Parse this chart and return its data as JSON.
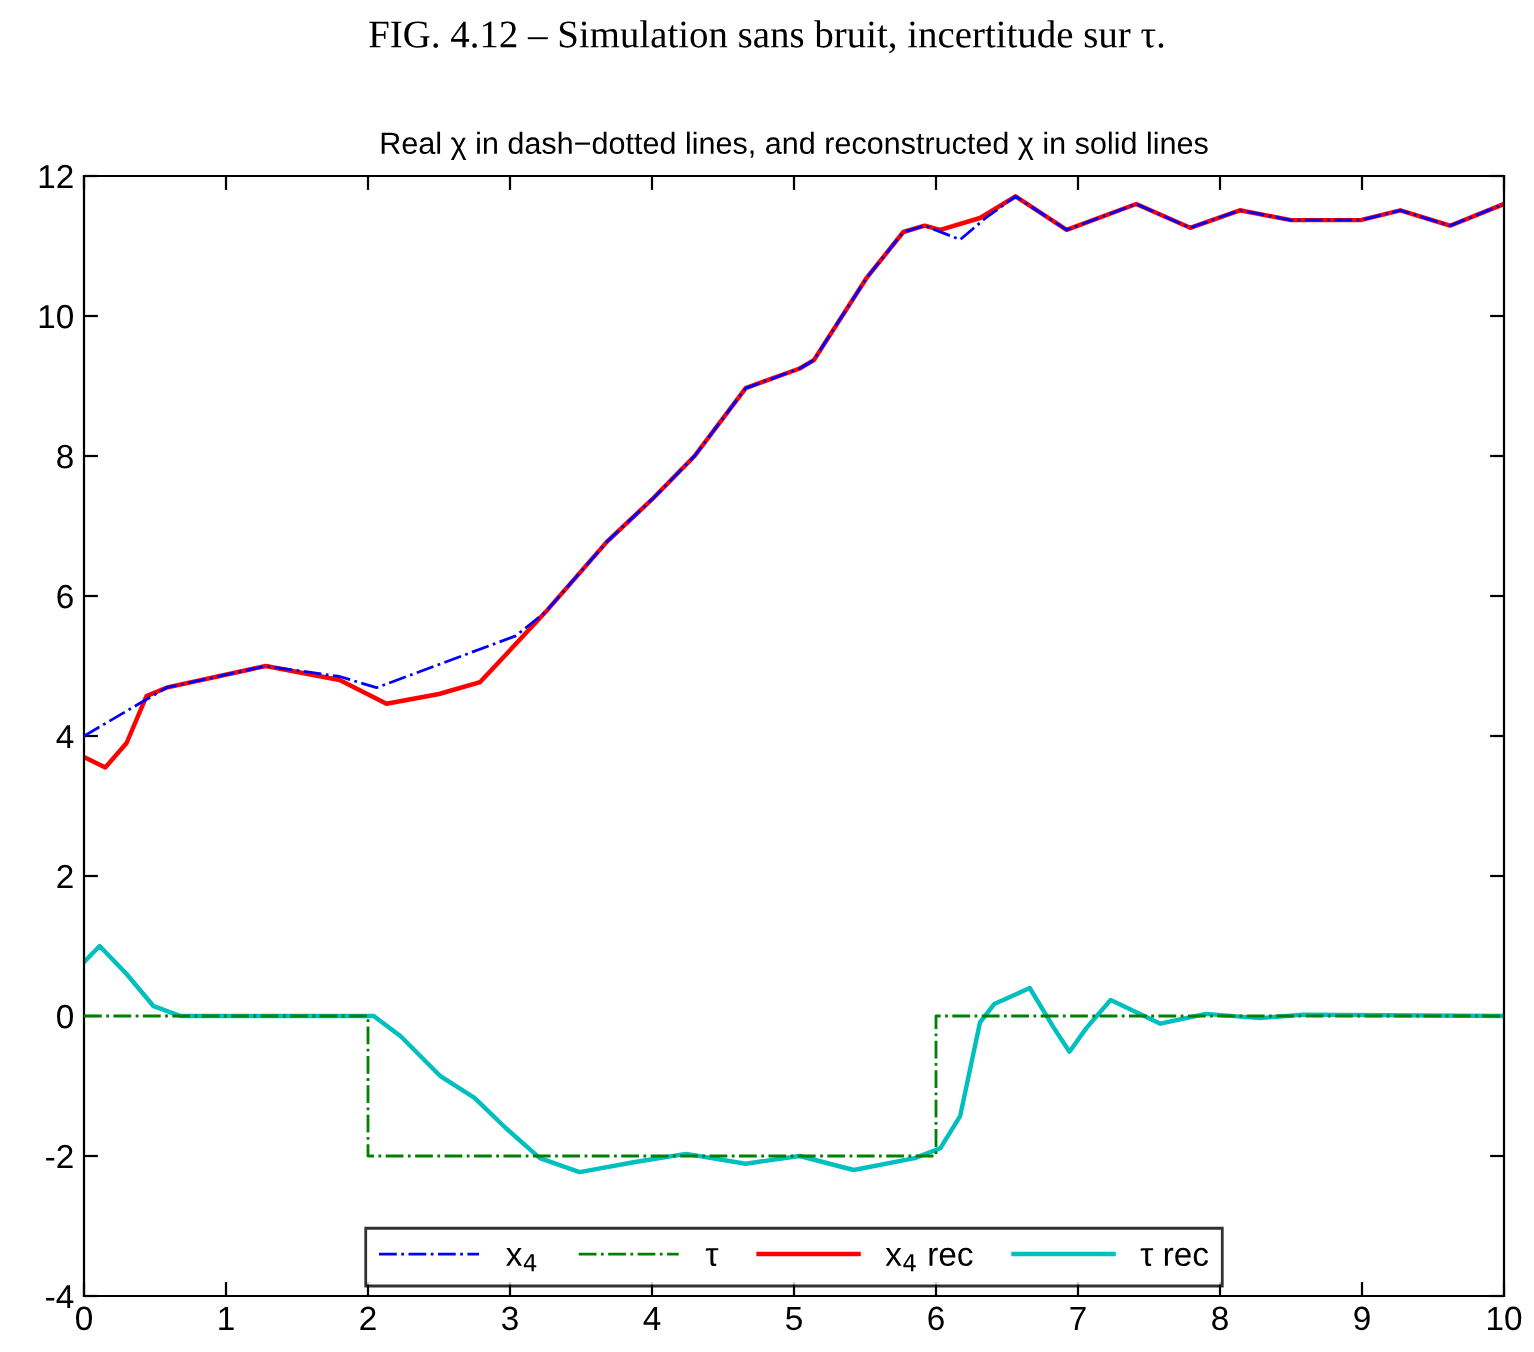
{
  "chart_data": {
    "type": "line",
    "title": "FIG. 4.12 – Simulation sans bruit, incertitude sur τ.",
    "subtitle": "Real χ in dash−dotted lines, and reconstructed χ in solid lines",
    "xlim": [
      0,
      10
    ],
    "ylim": [
      -4,
      12
    ],
    "xticks": [
      0,
      1,
      2,
      3,
      4,
      5,
      6,
      7,
      8,
      9,
      10
    ],
    "yticks": [
      -4,
      -2,
      0,
      2,
      4,
      6,
      8,
      10,
      12
    ],
    "grid": false,
    "legend": "bottom",
    "marker": "none",
    "series": [
      {
        "name": "x$_{4}$",
        "color": "#0000ff",
        "line_style": "dashdot",
        "x": [
          0,
          0.58,
          1.28,
          1.8,
          2.06,
          3.04,
          3.25,
          3.68,
          4.01,
          4.3,
          4.66,
          5.04,
          5.14,
          5.51,
          5.77,
          5.92,
          6.17,
          6.35,
          6.56,
          6.92,
          7.41,
          7.79,
          8.14,
          8.5,
          8.99,
          9.27,
          9.62,
          10
        ],
        "values": [
          4.0,
          4.69,
          5.0,
          4.85,
          4.69,
          5.43,
          5.77,
          6.77,
          7.4,
          8.0,
          8.97,
          9.25,
          9.37,
          10.54,
          11.2,
          11.29,
          11.09,
          11.4,
          11.71,
          11.23,
          11.6,
          11.26,
          11.51,
          11.37,
          11.37,
          11.51,
          11.29,
          11.6
        ]
      },
      {
        "name": "τ",
        "color": "#008000",
        "line_style": "dashdot",
        "x": [
          0,
          2,
          2,
          6,
          6,
          10
        ],
        "values": [
          0,
          0,
          -2,
          -2,
          0,
          0
        ]
      },
      {
        "name": "x$_{4}$ rec",
        "color": "#ff0000",
        "line_style": "solid",
        "x": [
          0,
          0.15,
          0.3,
          0.44,
          0.58,
          1.28,
          1.8,
          2.13,
          2.5,
          2.79,
          3.25,
          3.68,
          4.01,
          4.3,
          4.66,
          5.04,
          5.14,
          5.51,
          5.77,
          5.92,
          6.03,
          6.31,
          6.56,
          6.92,
          7.41,
          7.79,
          8.14,
          8.5,
          8.99,
          9.27,
          9.62,
          10
        ],
        "values": [
          3.7,
          3.55,
          3.9,
          4.57,
          4.69,
          5.0,
          4.8,
          4.46,
          4.6,
          4.77,
          5.77,
          6.77,
          7.4,
          8.0,
          8.97,
          9.25,
          9.37,
          10.54,
          11.2,
          11.29,
          11.23,
          11.4,
          11.71,
          11.23,
          11.6,
          11.26,
          11.51,
          11.37,
          11.37,
          11.51,
          11.29,
          11.6
        ]
      },
      {
        "name": "τ rec",
        "color": "#00bfbf",
        "line_style": "solid",
        "x": [
          0,
          0.11,
          0.3,
          0.49,
          0.68,
          2.04,
          2.23,
          2.51,
          2.75,
          2.97,
          3.21,
          3.49,
          3.87,
          4.24,
          4.66,
          5.04,
          5.42,
          5.85,
          6.03,
          6.17,
          6.31,
          6.41,
          6.66,
          6.83,
          6.94,
          7.06,
          7.23,
          7.58,
          7.9,
          8.28,
          8.59,
          10
        ],
        "values": [
          0.77,
          1.0,
          0.6,
          0.14,
          0,
          0,
          -0.29,
          -0.86,
          -1.17,
          -1.6,
          -2.03,
          -2.23,
          -2.09,
          -1.97,
          -2.11,
          -2.0,
          -2.2,
          -2.03,
          -1.89,
          -1.43,
          -0.09,
          0.17,
          0.4,
          -0.17,
          -0.51,
          -0.17,
          0.23,
          -0.11,
          0.03,
          -0.03,
          0.02,
          0
        ]
      }
    ]
  }
}
